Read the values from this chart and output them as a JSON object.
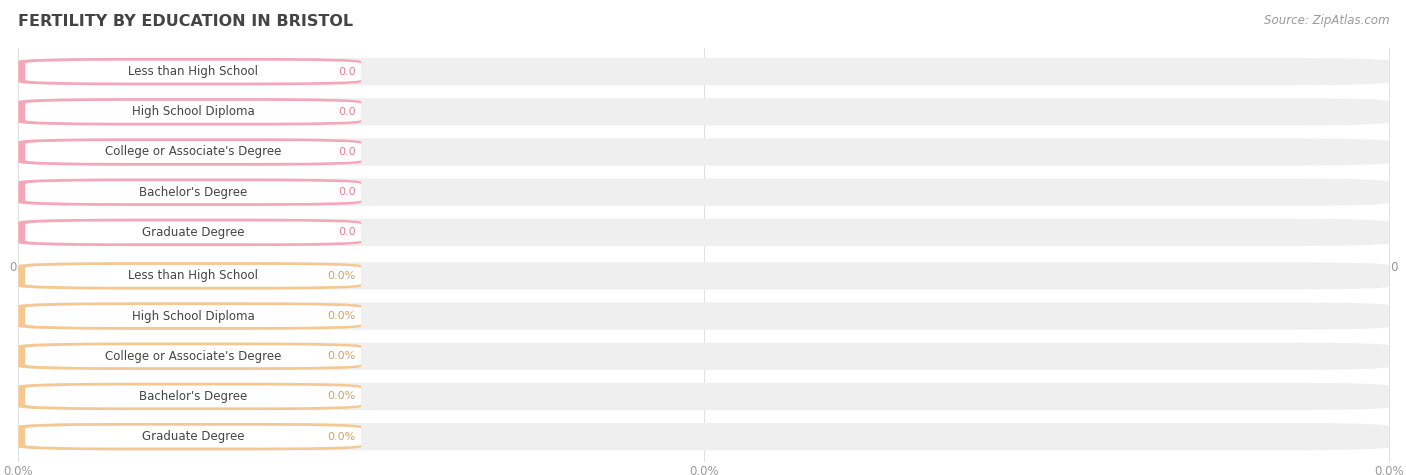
{
  "title": "FERTILITY BY EDUCATION IN BRISTOL",
  "source": "Source: ZipAtlas.com",
  "categories": [
    "Less than High School",
    "High School Diploma",
    "College or Associate's Degree",
    "Bachelor's Degree",
    "Graduate Degree"
  ],
  "top_values": [
    0.0,
    0.0,
    0.0,
    0.0,
    0.0
  ],
  "bottom_values": [
    0.0,
    0.0,
    0.0,
    0.0,
    0.0
  ],
  "top_color": "#F4A7B9",
  "top_bar_bg": "#EFEFEF",
  "bottom_color": "#F5C891",
  "bottom_bar_bg": "#EFEFEF",
  "bg_color": "#FFFFFF",
  "title_color": "#444444",
  "label_color": "#444444",
  "top_value_text_color": "#E8809A",
  "bottom_value_text_color": "#D4A060",
  "tick_text_color": "#999999",
  "white_label_bg": "#FFFFFF",
  "gridline_color": "#E0E0E0"
}
